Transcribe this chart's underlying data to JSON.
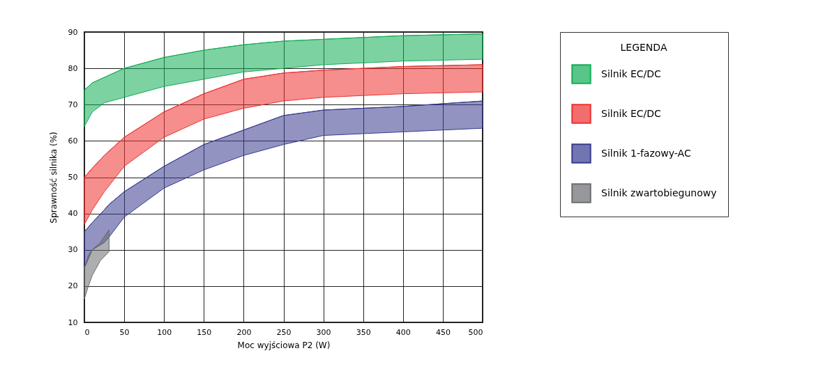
{
  "chart_data": {
    "type": "line",
    "xlabel": "Moc wyjściowa P2 (W)",
    "ylabel": "Sprawność silnika (%)",
    "legend_title": "LEGENDA",
    "xlim": [
      0,
      500
    ],
    "ylim": [
      10,
      90
    ],
    "xticks": [
      0,
      50,
      100,
      150,
      200,
      250,
      300,
      350,
      400,
      450,
      500
    ],
    "yticks": [
      10,
      20,
      30,
      40,
      50,
      60,
      70,
      80,
      90
    ],
    "grid": true,
    "legend": "right",
    "marker": "none",
    "series": [
      {
        "name": "Silnik EC/DC",
        "color": "#12ad55",
        "x": [
          0,
          10,
          25,
          50,
          100,
          150,
          200,
          250,
          300,
          400,
          500
        ],
        "values": [
          74,
          76,
          77.5,
          80,
          83,
          85,
          86.5,
          87.5,
          88,
          89,
          89.5
        ],
        "lower": [
          64,
          68,
          70.5,
          72,
          75,
          77,
          79,
          80,
          81,
          82,
          82.5
        ],
        "upper": [
          74,
          76,
          77.5,
          80,
          83,
          85,
          86.5,
          87.5,
          88,
          89,
          89.5
        ]
      },
      {
        "name": "Silnik EC/DC",
        "color": "#ec3130",
        "x": [
          0,
          10,
          25,
          50,
          100,
          150,
          200,
          250,
          300,
          400,
          500
        ],
        "values": [
          50,
          52.5,
          56,
          61,
          68,
          73,
          77,
          78.7,
          79.5,
          80.5,
          81
        ],
        "lower": [
          37,
          41,
          46,
          53,
          61,
          66,
          69,
          71,
          72,
          73,
          73.5
        ],
        "upper": [
          50,
          52.5,
          56,
          61,
          68,
          73,
          77,
          78.7,
          79.5,
          80.5,
          81
        ]
      },
      {
        "name": "Silnik 1-fazowy-AC",
        "color": "#383a8e",
        "x": [
          0,
          10,
          25,
          31,
          50,
          100,
          150,
          200,
          250,
          300,
          400,
          500
        ],
        "values": [
          35,
          37.5,
          41,
          42.5,
          46,
          53,
          59,
          63,
          67,
          68.5,
          69.5,
          71
        ],
        "lower": [
          25,
          30,
          32,
          33.5,
          39,
          47,
          52,
          56,
          59,
          61.5,
          62.5,
          63.5
        ],
        "upper": [
          35,
          37.5,
          41,
          42.5,
          46,
          53,
          59,
          63,
          67,
          68.5,
          69.5,
          71
        ]
      },
      {
        "name": "Silnik zwartobiegunowy",
        "color": "#6b6c70",
        "x": [
          0,
          5,
          10,
          20,
          31
        ],
        "values": [
          25,
          28.5,
          30,
          32,
          35.5
        ],
        "lower": [
          16.5,
          20,
          23,
          27,
          29.5
        ],
        "upper": [
          25,
          28.5,
          30,
          32,
          35.5
        ]
      }
    ]
  }
}
